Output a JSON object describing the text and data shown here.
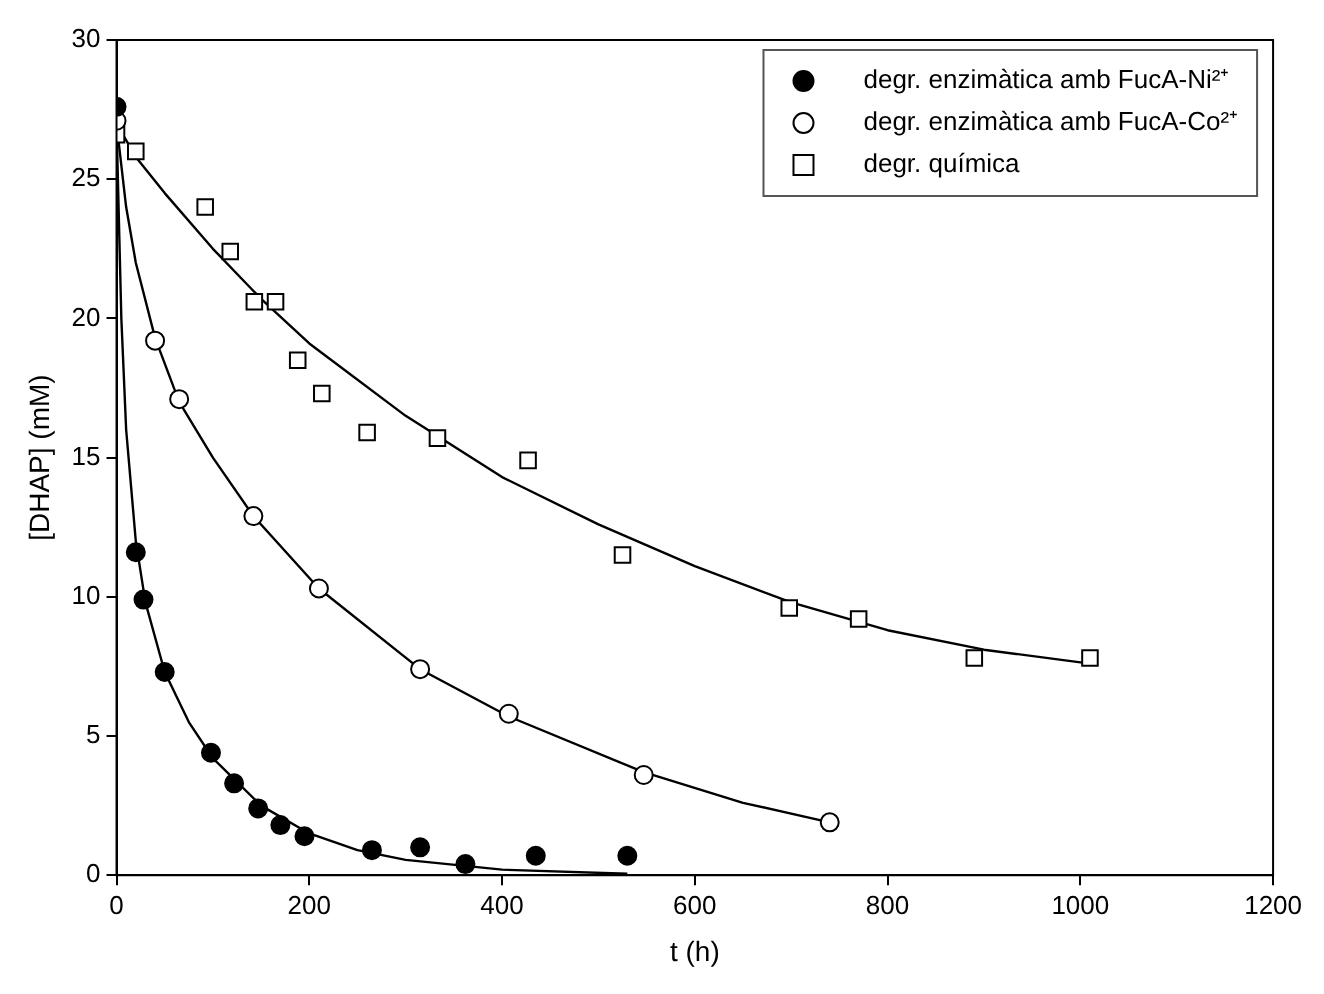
{
  "chart_data": {
    "type": "scatter",
    "xlabel": "t (h)",
    "ylabel": "[DHAP] (mM)",
    "xlim": [
      0,
      1200
    ],
    "xticks": [
      0,
      200,
      400,
      600,
      800,
      1000,
      1200
    ],
    "ylim": [
      0,
      30
    ],
    "yticks": [
      0,
      5,
      10,
      15,
      20,
      25,
      30
    ],
    "grid": false,
    "legend": "top right",
    "series": [
      {
        "name": "degr. enzimàtica amb FucA-Ni²⁺",
        "color": "#000000",
        "marker": "circle",
        "x": [
          0,
          20,
          28,
          50,
          98,
          122,
          147,
          170,
          195,
          265,
          315,
          362,
          435,
          530
        ],
        "values": [
          27.6,
          11.6,
          9.9,
          7.3,
          4.4,
          3.3,
          2.4,
          1.8,
          1.4,
          0.9,
          1.0,
          0.4,
          0.7,
          0.7
        ]
      },
      {
        "name": "degr. enzimàtica amb FucA-Co²⁺",
        "color": "#000000",
        "marker": "circle",
        "x": [
          0,
          40,
          65,
          142,
          210,
          315,
          407,
          547,
          740
        ],
        "values": [
          27.1,
          19.2,
          17.1,
          12.9,
          10.3,
          7.4,
          5.8,
          3.6,
          1.9
        ]
      },
      {
        "name": "degr. química",
        "color": "#000000",
        "marker": "square",
        "x": [
          0,
          20,
          92,
          118,
          143,
          165,
          188,
          213,
          260,
          333,
          427,
          525,
          698,
          770,
          890,
          1010
        ],
        "values": [
          26.6,
          26.0,
          24.0,
          22.4,
          20.6,
          20.6,
          18.5,
          17.3,
          15.9,
          15.7,
          14.9,
          11.5,
          9.6,
          9.2,
          7.8,
          7.8
        ]
      },
      {
        "type": "line",
        "color": "#000000",
        "marker": "none",
        "x": [
          0,
          5,
          10,
          20,
          30,
          50,
          75,
          100,
          150,
          200,
          250,
          300,
          400,
          530
        ],
        "values": [
          27,
          20,
          16,
          12,
          9.8,
          7.3,
          5.5,
          4.2,
          2.5,
          1.5,
          0.9,
          0.55,
          0.2,
          0.05
        ]
      },
      {
        "type": "line",
        "color": "#000000",
        "marker": "none",
        "x": [
          0,
          10,
          20,
          40,
          65,
          100,
          142,
          210,
          315,
          407,
          547,
          650,
          740
        ],
        "values": [
          27,
          24,
          22,
          19.3,
          17.0,
          15,
          12.9,
          10.3,
          7.4,
          5.7,
          3.7,
          2.6,
          1.9
        ]
      },
      {
        "type": "line",
        "color": "#000000",
        "marker": "none",
        "x": [
          0,
          20,
          50,
          100,
          150,
          200,
          300,
          400,
          500,
          600,
          700,
          800,
          900,
          1010
        ],
        "values": [
          27,
          25.8,
          24.5,
          22.5,
          20.7,
          19.1,
          16.5,
          14.3,
          12.6,
          11.1,
          9.8,
          8.8,
          8.1,
          7.6
        ]
      }
    ]
  }
}
